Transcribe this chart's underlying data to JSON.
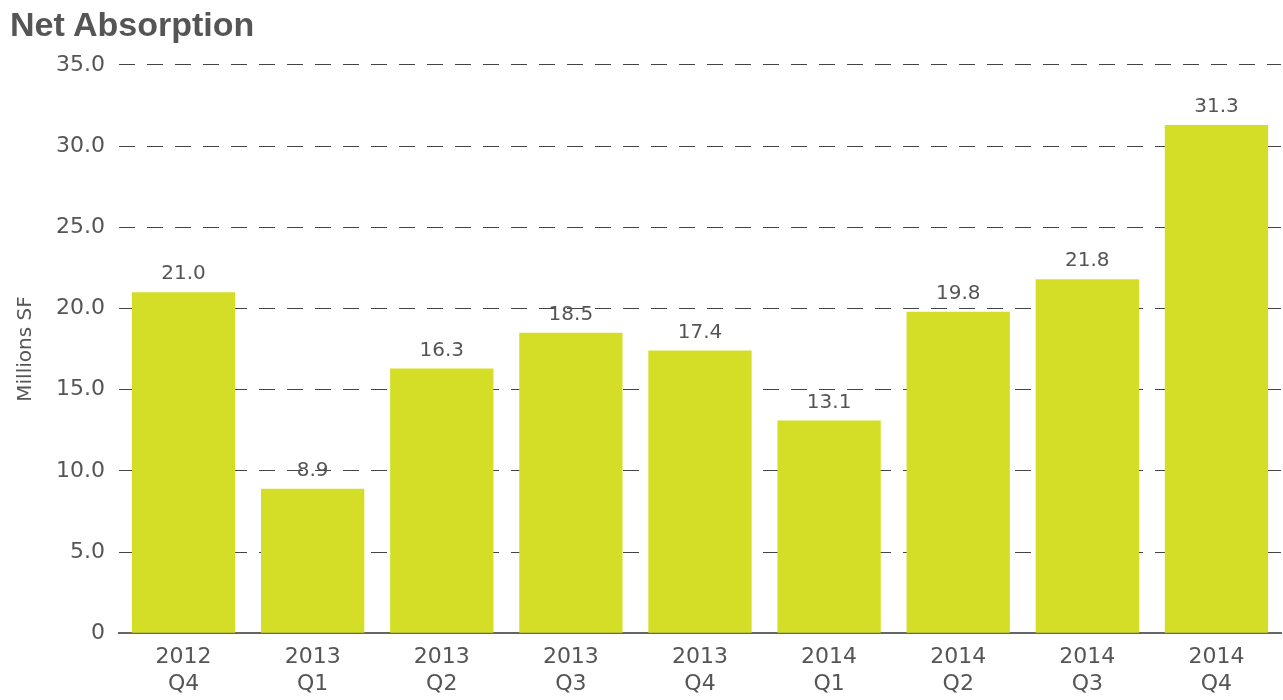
{
  "chart_data": {
    "type": "bar",
    "title": "Net Absorption",
    "ylabel": "Millions SF",
    "categories": [
      "2012 Q4",
      "2013 Q1",
      "2013 Q2",
      "2013 Q3",
      "2013 Q4",
      "2014 Q1",
      "2014 Q2",
      "2014 Q3",
      "2014 Q4"
    ],
    "values": [
      21.0,
      8.9,
      16.3,
      18.5,
      17.4,
      13.1,
      19.8,
      21.8,
      31.3
    ],
    "value_labels": [
      "21.0",
      "8.9",
      "16.3",
      "18.5",
      "17.4",
      "13.1",
      "19.8",
      "21.8",
      "31.3"
    ],
    "color": "#d4de26",
    "grid": "y",
    "legend": false,
    "ylim": [
      0,
      35
    ],
    "yticks": [
      0,
      {
        "value": 5,
        "label": "5.0"
      },
      {
        "value": 10,
        "label": "10.0"
      },
      {
        "value": 15,
        "label": "15.0"
      },
      {
        "value": 20,
        "label": "20.0"
      },
      {
        "value": 25,
        "label": "25.0"
      },
      {
        "value": 30,
        "label": "30.0"
      },
      {
        "value": 35,
        "label": "35.0"
      }
    ]
  }
}
